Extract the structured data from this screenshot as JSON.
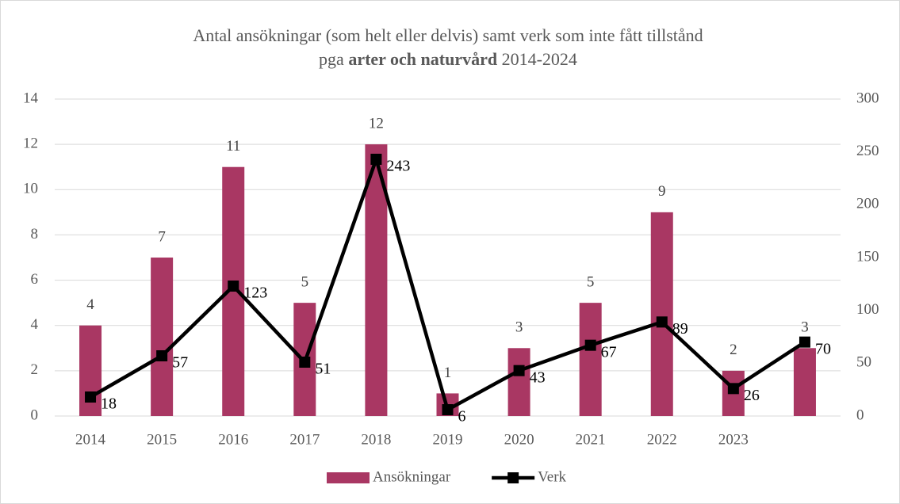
{
  "chart_data": {
    "type": "combo",
    "title": [
      [
        "Antal ansökningar (som helt eller delvis) samt verk som inte fått tillstånd"
      ],
      [
        "pga",
        "arter och naturvård",
        "2014-2024"
      ]
    ],
    "categories": [
      "2014",
      "2015",
      "2016",
      "2017",
      "2018",
      "2019",
      "2020",
      "2021",
      "2022",
      "2023",
      null
    ],
    "series": [
      {
        "name": "Ansökningar",
        "type": "bar",
        "color": "#a93763",
        "values": [
          4,
          7,
          11,
          5,
          12,
          1,
          3,
          5,
          9,
          2,
          3
        ]
      },
      {
        "name": "Verk",
        "type": "line",
        "axis": "y2",
        "color": "#000000",
        "values": [
          18,
          57,
          123,
          51,
          243,
          6,
          43,
          67,
          89,
          26,
          70
        ]
      }
    ],
    "ylim": [
      0,
      14
    ],
    "yticks": [
      0,
      2,
      4,
      6,
      8,
      10,
      12,
      14
    ],
    "y2lim": [
      0,
      300
    ],
    "y2ticks": [
      0,
      50,
      100,
      150,
      200,
      250,
      300
    ],
    "grid": true,
    "legend": "bottom"
  }
}
